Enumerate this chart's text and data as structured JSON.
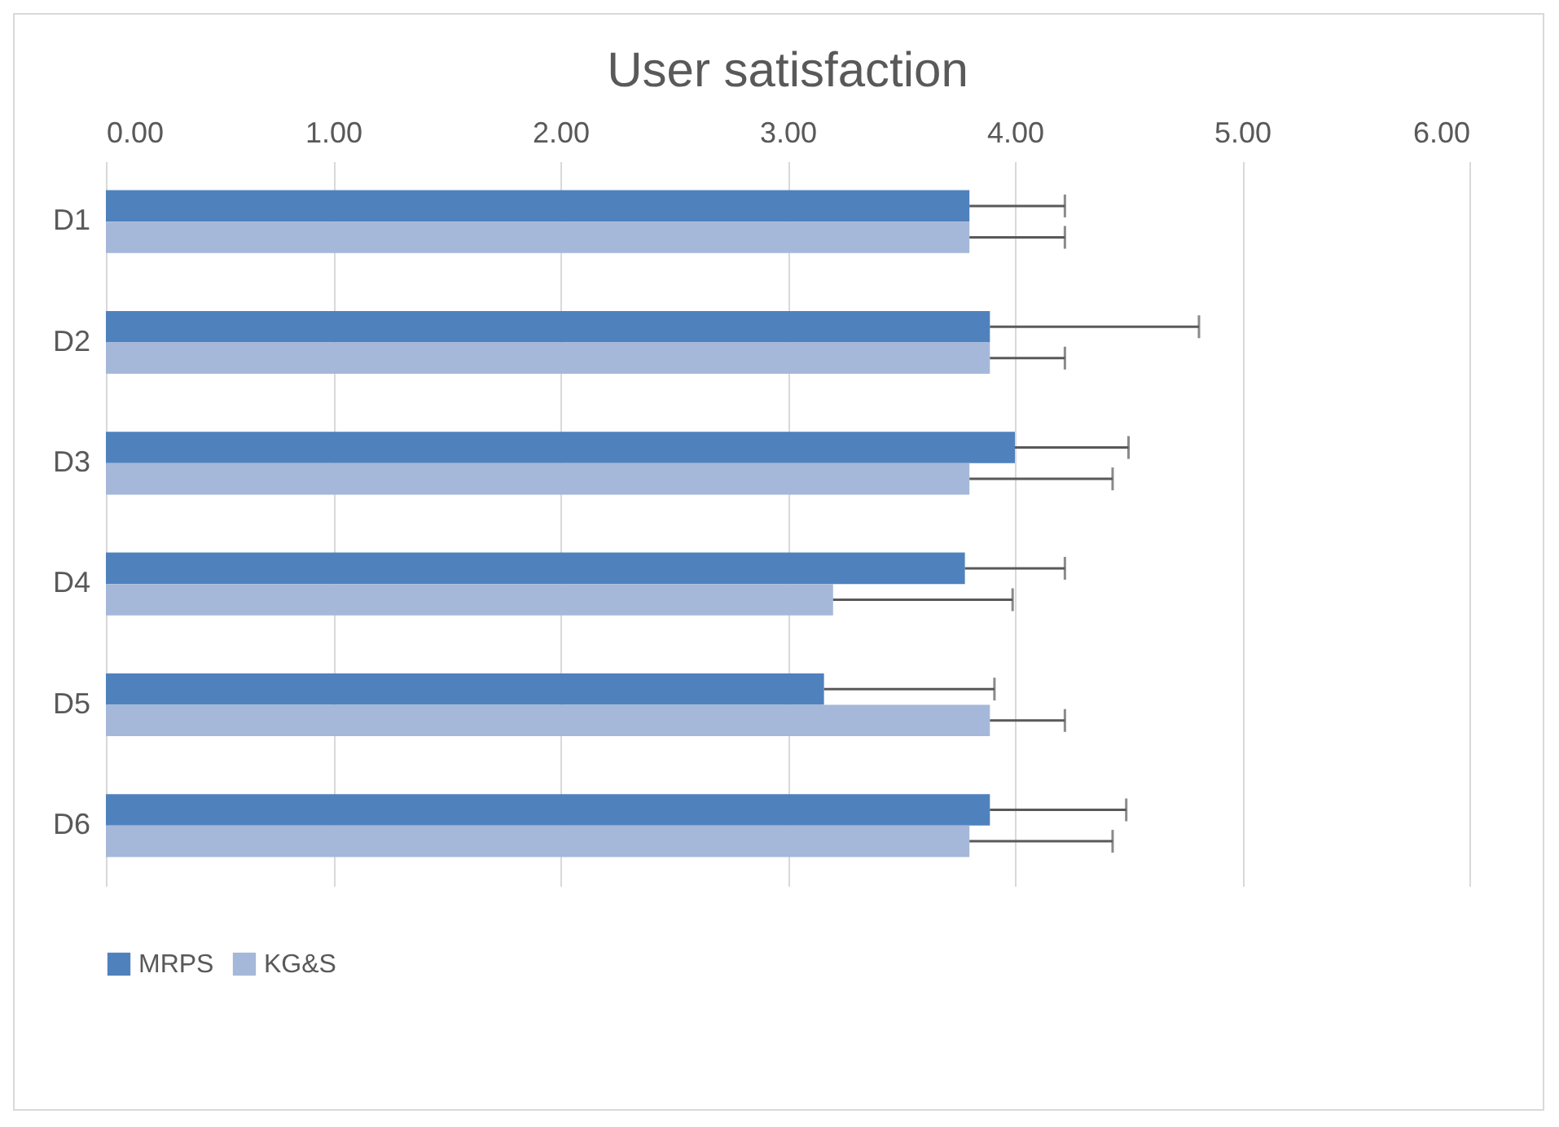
{
  "chart_data": {
    "type": "bar",
    "orientation": "horizontal",
    "title": "User satisfaction",
    "categories": [
      "D1",
      "D2",
      "D3",
      "D4",
      "D5",
      "D6"
    ],
    "series": [
      {
        "name": "MRPS",
        "color": "#4f81bd",
        "values": [
          3.8,
          3.89,
          4.0,
          3.78,
          3.16,
          3.89
        ],
        "errors": [
          [
            3.8,
            4.22
          ],
          [
            3.89,
            4.81
          ],
          [
            4.0,
            4.5
          ],
          [
            3.78,
            4.22
          ],
          [
            3.16,
            3.91
          ],
          [
            3.89,
            4.49
          ]
        ]
      },
      {
        "name": "KG&S",
        "color": "#a5b8da",
        "values": [
          3.8,
          3.89,
          3.8,
          3.2,
          3.89,
          3.8
        ],
        "errors": [
          [
            3.8,
            4.22
          ],
          [
            3.89,
            4.22
          ],
          [
            3.8,
            4.43
          ],
          [
            3.2,
            3.99
          ],
          [
            3.89,
            4.22
          ],
          [
            3.8,
            4.43
          ]
        ]
      }
    ],
    "xlim": [
      0,
      6
    ],
    "xticks": [
      {
        "value": 0,
        "label": "0.00"
      },
      {
        "value": 1,
        "label": "1.00"
      },
      {
        "value": 2,
        "label": "2.00"
      },
      {
        "value": 3,
        "label": "3.00"
      },
      {
        "value": 4,
        "label": "4.00"
      },
      {
        "value": 5,
        "label": "5.00"
      },
      {
        "value": 6,
        "label": "6.00"
      }
    ],
    "grid": true,
    "legend": "bottom"
  }
}
